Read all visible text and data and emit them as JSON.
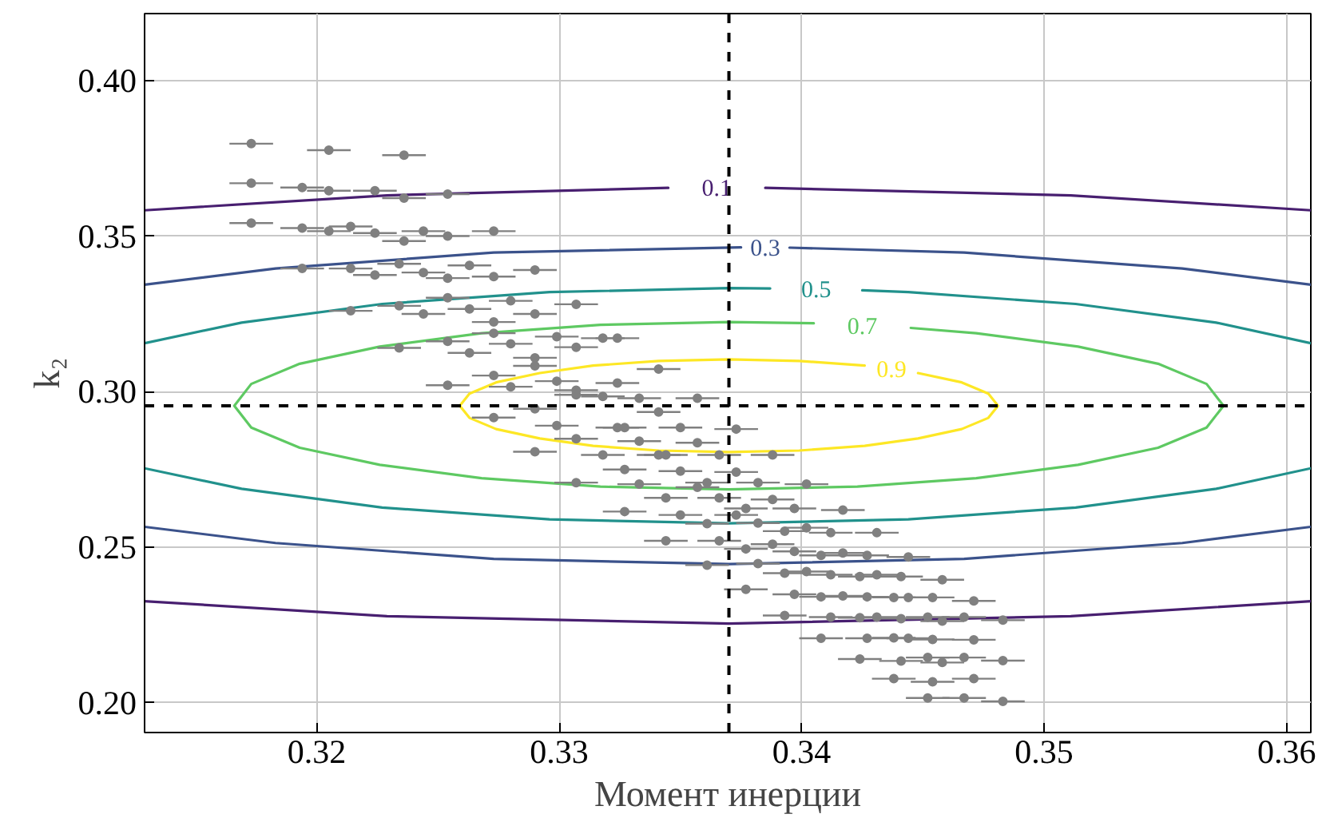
{
  "chart_data": {
    "type": "line",
    "xlabel": "Момент инерции",
    "ylabel": "k₂",
    "xlim": [
      0.3129,
      0.361
    ],
    "ylim": [
      0.1905,
      0.4215
    ],
    "xticks": [
      0.32,
      0.33,
      0.34,
      0.35,
      0.36
    ],
    "yticks": [
      {
        "value": 0.2,
        "label": "0.20"
      },
      {
        "value": 0.25,
        "label": "0.25"
      },
      {
        "value": 0.3,
        "label": "0.30"
      },
      {
        "value": 0.35,
        "label": "0.35"
      },
      {
        "value": 0.4,
        "label": "0.40"
      }
    ],
    "grid": true,
    "series": [
      {
        "name": "0.1",
        "color": "#481f70",
        "x": [
          0.361,
          0.3511,
          0.3385,
          0.3365,
          0.3345,
          0.3229,
          0.3129
        ],
        "values": [
          0.3583,
          0.3631,
          0.3655,
          null,
          0.3655,
          0.3631,
          0.3583
        ]
      },
      {
        "color": "#481f70",
        "x": [
          0.3129,
          0.3229,
          0.337,
          0.3511,
          0.361
        ],
        "values": [
          0.2327,
          0.2279,
          0.2255,
          0.2279,
          0.2327
        ]
      },
      {
        "name": "0.3",
        "color": "#3b528b",
        "x": [
          0.361,
          0.3557,
          0.3467,
          0.3395,
          0.3385,
          0.3375,
          0.3273,
          0.3183,
          0.3129
        ],
        "values": [
          0.3344,
          0.3396,
          0.3447,
          0.3463,
          null,
          0.3464,
          0.3447,
          0.3396,
          0.3344
        ]
      },
      {
        "color": "#3b528b",
        "x": [
          0.3129,
          0.3183,
          0.3273,
          0.337,
          0.3467,
          0.3557,
          0.361
        ],
        "values": [
          0.2566,
          0.2514,
          0.2463,
          0.2446,
          0.2463,
          0.2514,
          0.2566
        ]
      },
      {
        "name": "0.5",
        "color": "#21918c",
        "x": [
          0.361,
          0.3571,
          0.3513,
          0.3444,
          0.3425,
          0.3406,
          0.3387,
          0.337,
          0.3296,
          0.3227,
          0.3169,
          0.3129
        ],
        "values": [
          0.3156,
          0.3222,
          0.3282,
          0.332,
          0.3326,
          null,
          0.3332,
          0.3333,
          0.332,
          0.3282,
          0.3222,
          0.3156
        ]
      },
      {
        "color": "#21918c",
        "x": [
          0.3129,
          0.3169,
          0.3227,
          0.3296,
          0.337,
          0.3444,
          0.3513,
          0.3571,
          0.361
        ],
        "values": [
          0.2754,
          0.2688,
          0.2628,
          0.259,
          0.2577,
          0.259,
          0.2628,
          0.2688,
          0.2754
        ]
      },
      {
        "name": "0.7",
        "color": "#5ec962",
        "x": [
          0.3574,
          0.3567,
          0.3547,
          0.3514,
          0.3472,
          0.3445,
          0.3425,
          0.3405,
          0.337,
          0.3317,
          0.3268,
          0.3226,
          0.3193,
          0.3173,
          0.3166,
          0.3173,
          0.3193,
          0.3226,
          0.3268,
          0.3317,
          0.337,
          0.3423,
          0.3472,
          0.3514,
          0.3547,
          0.3567,
          0.3574
        ],
        "values": [
          0.2955,
          0.3025,
          0.309,
          0.3145,
          0.3188,
          0.3205,
          null,
          0.322,
          0.3224,
          0.3215,
          0.3188,
          0.3145,
          0.309,
          0.3025,
          0.2955,
          0.2885,
          0.282,
          0.2765,
          0.2722,
          0.2695,
          0.2686,
          0.2695,
          0.2722,
          0.2765,
          0.282,
          0.2885,
          0.2955
        ]
      },
      {
        "name": "0.9",
        "color": "#fde725",
        "x": [
          0.3481,
          0.3477,
          0.3466,
          0.3448,
          0.3437,
          0.3426,
          0.3399,
          0.337,
          0.3341,
          0.3314,
          0.3292,
          0.3274,
          0.3263,
          0.3259,
          0.3263,
          0.3274,
          0.3292,
          0.3314,
          0.3341,
          0.337,
          0.3399,
          0.3426,
          0.3448,
          0.3466,
          0.3477,
          0.3481
        ],
        "values": [
          0.2955,
          0.2994,
          0.303,
          0.306,
          null,
          0.3084,
          0.3099,
          0.3104,
          0.3099,
          0.3084,
          0.306,
          0.303,
          0.2994,
          0.2955,
          0.2916,
          0.288,
          0.285,
          0.2826,
          0.2811,
          0.2806,
          0.2811,
          0.2826,
          0.285,
          0.288,
          0.2916,
          0.2955
        ]
      },
      {
        "type": "scatter",
        "color": "#808080",
        "marker": "circle",
        "x": [
          0.3173,
          0.3173,
          0.3173,
          0.3194,
          0.3194,
          0.3194,
          0.3205,
          0.3205,
          0.3205,
          0.3214,
          0.3214,
          0.3214,
          0.3224,
          0.3224,
          0.3224,
          0.3236,
          0.3236,
          0.3236,
          0.3234,
          0.3234,
          0.3234,
          0.3244,
          0.3244,
          0.3244,
          0.3254,
          0.3254,
          0.3254,
          0.3254,
          0.3254,
          0.3254,
          0.3263,
          0.3263,
          0.3263,
          0.3273,
          0.3273,
          0.3273,
          0.3273,
          0.3273,
          0.3273,
          0.328,
          0.328,
          0.328,
          0.329,
          0.329,
          0.329,
          0.329,
          0.329,
          0.329,
          0.3299,
          0.3299,
          0.3299,
          0.3307,
          0.3307,
          0.3307,
          0.3307,
          0.3307,
          0.3307,
          0.3318,
          0.3318,
          0.3318,
          0.3324,
          0.3324,
          0.3324,
          0.3327,
          0.3327,
          0.3327,
          0.3333,
          0.3333,
          0.3333,
          0.3341,
          0.3341,
          0.3341,
          0.3344,
          0.3344,
          0.3344,
          0.335,
          0.335,
          0.335,
          0.3357,
          0.3357,
          0.3357,
          0.3361,
          0.3361,
          0.3361,
          0.3366,
          0.3366,
          0.3366,
          0.3373,
          0.3373,
          0.3373,
          0.3377,
          0.3377,
          0.3377,
          0.3382,
          0.3382,
          0.3382,
          0.3388,
          0.3388,
          0.3388,
          0.3393,
          0.3393,
          0.3393,
          0.3397,
          0.3397,
          0.3397,
          0.3402,
          0.3402,
          0.3402,
          0.3408,
          0.3408,
          0.3408,
          0.3412,
          0.3412,
          0.3412,
          0.3417,
          0.3417,
          0.3417,
          0.3424,
          0.3424,
          0.3424,
          0.3427,
          0.3427,
          0.3427,
          0.3431,
          0.3431,
          0.3431,
          0.3438,
          0.3438,
          0.3438,
          0.3441,
          0.3441,
          0.3441,
          0.3444,
          0.3444,
          0.3444,
          0.3452,
          0.3452,
          0.3452,
          0.3454,
          0.3454,
          0.3454,
          0.3458,
          0.3458,
          0.3458,
          0.3467,
          0.3467,
          0.3467,
          0.3471,
          0.3471,
          0.3471,
          0.3483,
          0.3483,
          0.3483
        ],
        "values": [
          0.3797,
          0.367,
          0.3542,
          0.3656,
          0.3526,
          0.3396,
          0.3776,
          0.3646,
          0.3516,
          0.3531,
          0.3396,
          0.326,
          0.3646,
          0.351,
          0.3375,
          0.376,
          0.3622,
          0.3484,
          0.3411,
          0.3276,
          0.3141,
          0.3516,
          0.3383,
          0.325,
          0.3635,
          0.35,
          0.3365,
          0.3302,
          0.3162,
          0.3021,
          0.3406,
          0.3266,
          0.3125,
          0.3516,
          0.337,
          0.3224,
          0.3188,
          0.3052,
          0.2917,
          0.3292,
          0.3154,
          0.3016,
          0.3391,
          0.325,
          0.3109,
          0.3083,
          0.2945,
          0.2807,
          0.3177,
          0.3034,
          0.2891,
          0.3281,
          0.3143,
          0.3005,
          0.299,
          0.2849,
          0.2708,
          0.3172,
          0.2985,
          0.2797,
          0.3172,
          0.3028,
          0.2885,
          0.2885,
          0.275,
          0.2615,
          0.2979,
          0.2841,
          0.2703,
          0.3073,
          0.2935,
          0.2797,
          0.2797,
          0.2659,
          0.2521,
          0.2885,
          0.2745,
          0.2604,
          0.2979,
          0.2836,
          0.2693,
          0.2708,
          0.2576,
          0.2443,
          0.2797,
          0.2659,
          0.2521,
          0.288,
          0.2742,
          0.2604,
          0.2625,
          0.2495,
          0.2365,
          0.2708,
          0.2578,
          0.2448,
          0.2797,
          0.2654,
          0.251,
          0.2552,
          0.2417,
          0.2281,
          0.2625,
          0.2487,
          0.2349,
          0.2703,
          0.2563,
          0.2422,
          0.2474,
          0.2341,
          0.2208,
          0.2547,
          0.2412,
          0.2276,
          0.262,
          0.2482,
          0.2344,
          0.2406,
          0.2274,
          0.2141,
          0.2474,
          0.2341,
          0.2208,
          0.2547,
          0.2412,
          0.2276,
          0.2339,
          0.2209,
          0.2078,
          0.2406,
          0.2271,
          0.2135,
          0.2469,
          0.2339,
          0.2208,
          0.2276,
          0.2146,
          0.2016,
          0.2339,
          0.2204,
          0.2068,
          0.2396,
          0.2263,
          0.213,
          0.2276,
          0.2146,
          0.2016,
          0.2328,
          0.2203,
          0.2078,
          0.2266,
          0.2136,
          0.2005
        ],
        "xerrors": [
          0.0009,
          0.0009,
          0.0009,
          0.0009,
          0.0009,
          0.0009,
          0.0009,
          0.0009,
          0.0009,
          0.0009,
          0.0009,
          0.0009,
          0.0009,
          0.0009,
          0.0009,
          0.0009,
          0.0009,
          0.0009,
          0.0009,
          0.0009,
          0.0009,
          0.0009,
          0.0009,
          0.0009,
          0.0009,
          0.0009,
          0.0009,
          0.0009,
          0.0009,
          0.0009,
          0.0009,
          0.0009,
          0.0009,
          0.0009,
          0.0009,
          0.0009,
          0.0009,
          0.0009,
          0.0009,
          0.0009,
          0.0009,
          0.0009,
          0.0009,
          0.0009,
          0.0009,
          0.0009,
          0.0009,
          0.0009,
          0.0009,
          0.0009,
          0.0009,
          0.0009,
          0.0009,
          0.0009,
          0.0009,
          0.0009,
          0.0009,
          0.0009,
          0.0009,
          0.0009,
          0.0009,
          0.0009,
          0.0009,
          0.0009,
          0.0009,
          0.0009,
          0.0009,
          0.0009,
          0.0009,
          0.0009,
          0.0009,
          0.0009,
          0.0009,
          0.0009,
          0.0009,
          0.0009,
          0.0009,
          0.0009,
          0.0009,
          0.0009,
          0.0009,
          0.0009,
          0.0009,
          0.0009,
          0.0009,
          0.0009,
          0.0009,
          0.0009,
          0.0009,
          0.0009,
          0.0009,
          0.0009,
          0.0009,
          0.0009,
          0.0009,
          0.0009,
          0.0009,
          0.0009,
          0.0009,
          0.0009,
          0.0009,
          0.0009,
          0.0009,
          0.0009,
          0.0009,
          0.0009,
          0.0009,
          0.0009,
          0.0009,
          0.0009,
          0.0009,
          0.0009,
          0.0009,
          0.0009,
          0.0009,
          0.0009,
          0.0009,
          0.0009,
          0.0009,
          0.0009,
          0.0009,
          0.0009,
          0.0009,
          0.0009,
          0.0009,
          0.0009,
          0.0009,
          0.0009,
          0.0009,
          0.0009,
          0.0009,
          0.0009,
          0.0009,
          0.0009,
          0.0009,
          0.0009,
          0.0009,
          0.0009,
          0.0009,
          0.0009,
          0.0009,
          0.0009,
          0.0009,
          0.0009,
          0.0009,
          0.0009,
          0.0009,
          0.0009,
          0.0009,
          0.0009,
          0.0009,
          0.0009,
          0.0009
        ]
      }
    ],
    "ref_lines": [
      {
        "axis": "x",
        "value": 0.337,
        "color": "#000000",
        "line_style": "dashed"
      },
      {
        "axis": "y",
        "value": 0.2955,
        "color": "#000000",
        "line_style": "dashed"
      }
    ]
  }
}
